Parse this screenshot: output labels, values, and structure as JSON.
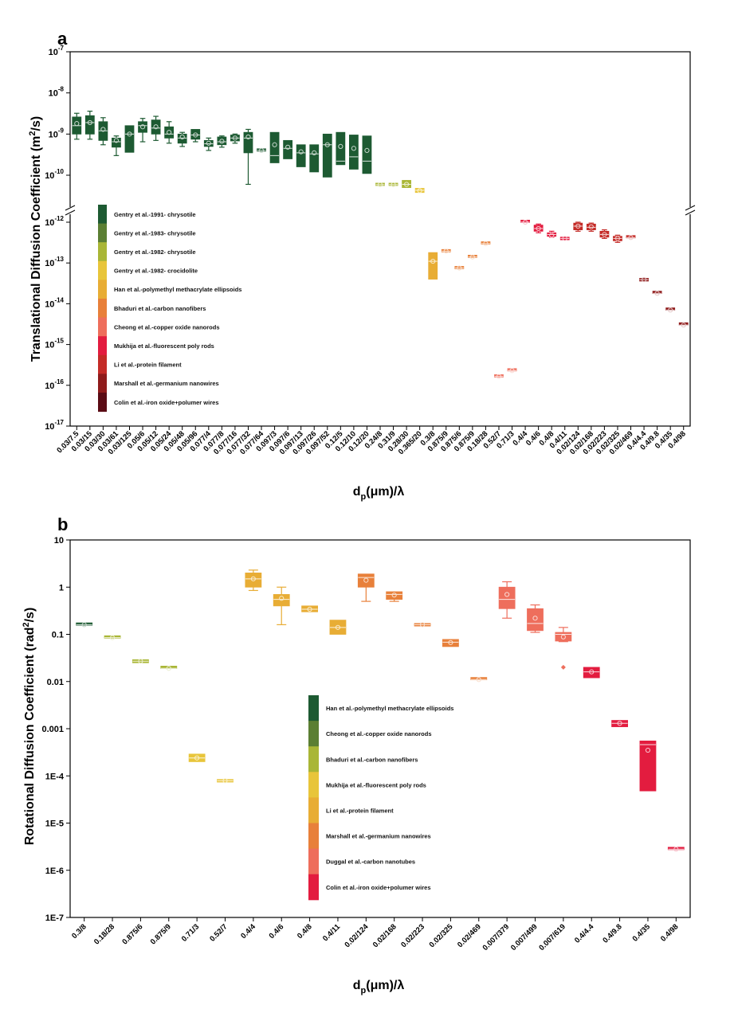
{
  "panels": [
    {
      "letter": "a",
      "ylabel_pre": "Translational Diffusion Coefficient (m",
      "ylabel_sup": "2",
      "ylabel_post": "/s)",
      "xlabel_main": "d",
      "xlabel_sub": "p",
      "xlabel_post": "(μm)/λ",
      "yticks": [
        "10-7",
        "10-8",
        "10-9",
        "10-10",
        "10-12",
        "10-13",
        "10-14",
        "10-15",
        "10-16",
        "10-17"
      ],
      "legend": [
        "Gentry et al.-1991- chrysotile",
        "Gentry et al.-1983- chrysotile",
        "Gentry et al.-1982- chrysotile",
        "Gentry et al.-1982- crocidolite",
        "Han et al.-polymethyl methacrylate ellipsoids",
        "Bhaduri et al.-carbon nanofibers",
        "Cheong et al.-copper oxide nanorods",
        "Mukhija et al.-fluorescent poly rods",
        "Li et al.-protein filament",
        "Marshall et al.-germanium nanowires",
        "Colin et al.-iron oxide+polumer wires"
      ]
    },
    {
      "letter": "b",
      "ylabel_pre": "Rotational Diffusion Coefficient (rad",
      "ylabel_sup": "2",
      "ylabel_post": "/s)",
      "xlabel_main": "d",
      "xlabel_sub": "p",
      "xlabel_post": "(μm)/λ",
      "yticks": [
        "10",
        "1",
        "0.1",
        "0.01",
        "0.001",
        "1E-4",
        "1E-5",
        "1E-6",
        "1E-7"
      ],
      "legend": [
        "Han et al.-polymethyl methacrylate ellipsoids",
        "Cheong et al.-copper oxide nanorods",
        "Bhaduri et al.-carbon nanofibers",
        "Mukhija et al.-fluorescent poly rods",
        "Li et al.-protein filament",
        "Marshall et al.-germanium nanowires",
        "Duggal et al.-carbon nanotubes",
        "Colin et al.-iron oxide+polumer wires"
      ]
    }
  ],
  "colors": {
    "legend_a": [
      "#1d5a32",
      "#5b7f33",
      "#a9b636",
      "#e8c53a",
      "#e8ad35",
      "#e8803a",
      "#ee6e5c",
      "#e31c3f",
      "#c42b27",
      "#8f1b1b",
      "#5a0b14"
    ],
    "legend_b": [
      "#1d5a32",
      "#5b7f33",
      "#a9b636",
      "#e8c53a",
      "#e8ad35",
      "#e8803a",
      "#ee6e5c",
      "#e31c3f"
    ]
  },
  "chart_data": [
    {
      "type": "box",
      "panel": "a",
      "y_scale": "log",
      "y_break": [
        1e-10,
        1e-12
      ],
      "ylim": [
        1e-17,
        1e-07
      ],
      "categories": [
        "0.03/7.5",
        "0.03/15",
        "0.03/30",
        "0.03/61",
        "0.03/125",
        "0.05/6",
        "0.05/12",
        "0.05/24",
        "0.05/48",
        "0.05/96",
        "0.077/4",
        "0.077/8",
        "0.077/16",
        "0.077/32",
        "0.077/64",
        "0.097/3",
        "0.097/6",
        "0.097/13",
        "0.097/26",
        "0.097/52",
        "0.12/5",
        "0.12/10",
        "0.12/20",
        "0.24/8",
        "0.31/9",
        "0.28/30",
        "0.365/20",
        "0.3/8",
        "0.875/9",
        "0.875/6",
        "0.875/9",
        "0.18/28",
        "0.52/7",
        "0.71/3",
        "0.4/4",
        "0.4/6",
        "0.4/8",
        "0.4/11",
        "0.02/124",
        "0.02/168",
        "0.02/223",
        "0.02/325",
        "0.02/469",
        "0.4/4.4",
        "0.4/9.8",
        "0.4/35",
        "0.4/98"
      ],
      "series": [
        {
          "color_index": 0,
          "boxes": [
            {
              "lo": 7.5e-10,
              "q1": 1e-09,
              "med": 1.6e-09,
              "q3": 2.6e-09,
              "hi": 3.2e-09,
              "mean": 1.8e-09
            },
            {
              "lo": 7.5e-10,
              "q1": 1e-09,
              "med": 1.9e-09,
              "q3": 2.8e-09,
              "hi": 3.6e-09,
              "mean": 1.9e-09
            },
            {
              "lo": 5.5e-10,
              "q1": 7e-10,
              "med": 1.2e-09,
              "q3": 2e-09,
              "hi": 2.5e-09,
              "mean": 1.3e-09
            },
            {
              "lo": 3e-10,
              "q1": 4.8e-10,
              "med": 6.5e-10,
              "q3": 8e-10,
              "hi": 9e-10,
              "mean": 7e-10
            },
            {
              "lo": 3.6e-10,
              "q1": 3.6e-10,
              "med": 1e-09,
              "q3": 1.6e-09,
              "hi": 1.6e-09,
              "mean": 1e-09
            },
            {
              "lo": 6.5e-10,
              "q1": 1.1e-09,
              "med": 1.6e-09,
              "q3": 2e-09,
              "hi": 2.4e-09,
              "mean": 1.5e-09
            },
            {
              "lo": 7e-10,
              "q1": 1e-09,
              "med": 1.4e-09,
              "q3": 2.2e-09,
              "hi": 2.7e-09,
              "mean": 1.5e-09
            },
            {
              "lo": 6e-10,
              "q1": 8e-10,
              "med": 1e-09,
              "q3": 1.5e-09,
              "hi": 2e-09,
              "mean": 1.1e-09
            },
            {
              "lo": 5e-10,
              "q1": 6e-10,
              "med": 8e-10,
              "q3": 1e-09,
              "hi": 1.1e-09,
              "mean": 8.5e-10
            },
            {
              "lo": 6.5e-10,
              "q1": 7.5e-10,
              "med": 9.5e-10,
              "q3": 1.3e-09,
              "hi": 1.3e-09,
              "mean": 9.5e-10
            },
            {
              "lo": 4e-10,
              "q1": 5e-10,
              "med": 5.8e-10,
              "q3": 7e-10,
              "hi": 8e-10,
              "mean": 6e-10
            },
            {
              "lo": 4.8e-10,
              "q1": 5.5e-10,
              "med": 6.5e-10,
              "q3": 8.5e-10,
              "hi": 9e-10,
              "mean": 6.7e-10
            },
            {
              "lo": 6e-10,
              "q1": 6.8e-10,
              "med": 8e-10,
              "q3": 9.5e-10,
              "hi": 1e-09,
              "mean": 8e-10
            },
            {
              "lo": 6e-11,
              "q1": 3.5e-10,
              "med": 8e-10,
              "q3": 1.1e-09,
              "hi": 1.3e-09,
              "mean": 8.5e-10
            },
            {
              "lo": 3.9e-10,
              "q1": 3.9e-10,
              "med": 4e-10,
              "q3": 4.1e-10,
              "hi": 4.1e-10,
              "mean": 4e-10
            },
            {
              "lo": 2e-10,
              "q1": 2e-10,
              "med": 3e-10,
              "q3": 1.1e-09,
              "hi": 1.1e-09,
              "mean": 5.5e-10
            },
            {
              "lo": 2.5e-10,
              "q1": 2.5e-10,
              "med": 4.5e-10,
              "q3": 7e-10,
              "hi": 7e-10,
              "mean": 4.8e-10
            },
            {
              "lo": 1.6e-10,
              "q1": 1.6e-10,
              "med": 3.5e-10,
              "q3": 5.5e-10,
              "hi": 5.5e-10,
              "mean": 3.7e-10
            },
            {
              "lo": 1.2e-10,
              "q1": 1.2e-10,
              "med": 3.3e-10,
              "q3": 5.5e-10,
              "hi": 5.5e-10,
              "mean": 3.5e-10
            },
            {
              "lo": 9e-11,
              "q1": 9e-11,
              "med": 5.5e-10,
              "q3": 1e-09,
              "hi": 1e-09,
              "mean": 5.5e-10
            },
            {
              "lo": 1.8e-10,
              "q1": 1.8e-10,
              "med": 2.2e-10,
              "q3": 1.1e-09,
              "hi": 1.1e-09,
              "mean": 5e-10
            },
            {
              "lo": 1.4e-10,
              "q1": 1.4e-10,
              "med": 2.8e-10,
              "q3": 9.5e-10,
              "hi": 9.5e-10,
              "mean": 4.5e-10
            },
            {
              "lo": 1.1e-10,
              "q1": 1.1e-10,
              "med": 2.2e-10,
              "q3": 9e-10,
              "hi": 9e-10,
              "mean": 4e-10
            }
          ]
        },
        {
          "color_index": 2,
          "boxes": [
            {
              "lo": 5.8e-11,
              "q1": 5.8e-11,
              "med": 5.9e-11,
              "q3": 6e-11,
              "hi": 6e-11,
              "mean": 5.9e-11
            },
            {
              "lo": 5.8e-11,
              "q1": 5.8e-11,
              "med": 5.9e-11,
              "q3": 6e-11,
              "hi": 6e-11,
              "mean": 5.9e-11
            },
            {
              "lo": 5e-11,
              "q1": 5e-11,
              "med": 6e-11,
              "q3": 7.5e-11,
              "hi": 7.5e-11,
              "mean": 6e-11
            }
          ]
        },
        {
          "color_index": 3,
          "boxes": [
            {
              "lo": 3.8e-11,
              "q1": 3.8e-11,
              "med": 4.3e-11,
              "q3": 4.8e-11,
              "hi": 4.8e-11,
              "mean": 4.2e-11
            }
          ]
        },
        {
          "color_index": 4,
          "boxes": [
            {
              "lo": 4e-14,
              "q1": 4e-14,
              "med": 1.1e-13,
              "q3": 1.8e-13,
              "hi": 1.8e-13,
              "mean": 1.1e-13
            }
          ]
        },
        {
          "color_index": 5,
          "boxes": [
            {
              "lo": 1.9e-13,
              "q1": 1.9e-13,
              "med": 1.95e-13,
              "q3": 2e-13,
              "hi": 2e-13,
              "mean": 1.95e-13
            },
            {
              "lo": 7.3e-14,
              "q1": 7.3e-14,
              "med": 7.5e-14,
              "q3": 7.7e-14,
              "hi": 7.7e-14,
              "mean": 7.5e-14
            },
            {
              "lo": 1.35e-13,
              "q1": 1.35e-13,
              "med": 1.4e-13,
              "q3": 1.45e-13,
              "hi": 1.45e-13,
              "mean": 1.4e-13
            },
            {
              "lo": 2.9e-13,
              "q1": 2.9e-13,
              "med": 3e-13,
              "q3": 3.1e-13,
              "hi": 3.1e-13,
              "mean": 3e-13
            }
          ]
        },
        {
          "color_index": 6,
          "boxes": [
            {
              "lo": 1.6e-16,
              "q1": 1.6e-16,
              "med": 1.65e-16,
              "q3": 1.7e-16,
              "hi": 1.7e-16,
              "mean": 1.65e-16
            },
            {
              "lo": 2.2e-16,
              "q1": 2.2e-16,
              "med": 2.3e-16,
              "q3": 2.4e-16,
              "hi": 2.4e-16,
              "mean": 2.3e-16
            }
          ]
        },
        {
          "color_index": 7,
          "boxes": [
            {
              "lo": 9.5e-13,
              "q1": 9.5e-13,
              "med": 1e-12,
              "q3": 1.05e-12,
              "hi": 1.05e-12,
              "mean": 1e-12
            },
            {
              "lo": 5.5e-13,
              "q1": 6e-13,
              "med": 7e-13,
              "q3": 8.5e-13,
              "hi": 9e-13,
              "mean": 7e-13
            },
            {
              "lo": 4.3e-13,
              "q1": 4.5e-13,
              "med": 5e-13,
              "q3": 5.5e-13,
              "hi": 6e-13,
              "mean": 4.8e-13
            },
            {
              "lo": 3.7e-13,
              "q1": 3.7e-13,
              "med": 4e-13,
              "q3": 4.3e-13,
              "hi": 4.3e-13,
              "mean": 4e-13
            }
          ]
        },
        {
          "color_index": 8,
          "boxes": [
            {
              "lo": 6e-13,
              "q1": 6.5e-13,
              "med": 8e-13,
              "q3": 9.5e-13,
              "hi": 1e-12,
              "mean": 8e-13
            },
            {
              "lo": 6e-13,
              "q1": 6.5e-13,
              "med": 7.5e-13,
              "q3": 9e-13,
              "hi": 9.5e-13,
              "mean": 7.7e-13
            },
            {
              "lo": 4e-13,
              "q1": 4.3e-13,
              "med": 5e-13,
              "q3": 6e-13,
              "hi": 6.5e-13,
              "mean": 5e-13
            },
            {
              "lo": 3.2e-13,
              "q1": 3.5e-13,
              "med": 4e-13,
              "q3": 4.5e-13,
              "hi": 4.8e-13,
              "mean": 4e-13
            },
            {
              "lo": 4e-13,
              "q1": 4e-13,
              "med": 4.2e-13,
              "q3": 4.4e-13,
              "hi": 4.4e-13,
              "mean": 4.2e-13
            }
          ]
        },
        {
          "color_index": 9,
          "boxes": [
            {
              "lo": 3.6e-14,
              "q1": 3.6e-14,
              "med": 3.9e-14,
              "q3": 4.2e-14,
              "hi": 4.2e-14,
              "mean": 3.9e-14
            },
            {
              "lo": 1.7e-14,
              "q1": 1.7e-14,
              "med": 1.8e-14,
              "q3": 1.9e-14,
              "hi": 1.9e-14,
              "mean": 1.8e-14
            },
            {
              "lo": 6.6e-15,
              "q1": 6.6e-15,
              "med": 7e-15,
              "q3": 7.4e-15,
              "hi": 7.4e-15,
              "mean": 7e-15
            },
            {
              "lo": 2.8e-15,
              "q1": 2.8e-15,
              "med": 3e-15,
              "q3": 3.2e-15,
              "hi": 3.2e-15,
              "mean": 3e-15
            }
          ]
        }
      ]
    },
    {
      "type": "box",
      "panel": "b",
      "y_scale": "log",
      "ylim": [
        1e-07,
        10
      ],
      "categories": [
        "0.3/8",
        "0.18/28",
        "0.875/6",
        "0.875/9",
        "0.71/3",
        "0.52/7",
        "0.4/4",
        "0.4/6",
        "0.4/8",
        "0.4/11",
        "0.02/124",
        "0.02/168",
        "0.02/223",
        "0.02/325",
        "0.02/469",
        "0.007/379",
        "0.007/499",
        "0.007/619",
        "0.4/4.4",
        "0.4/9.8",
        "0.4/35",
        "0.4/98"
      ],
      "series": [
        {
          "color_index": 0,
          "boxes": [
            {
              "lo": 0.155,
              "q1": 0.155,
              "med": 0.16,
              "q3": 0.165,
              "hi": 0.165,
              "mean": 0.16
            }
          ]
        },
        {
          "color_index": 2,
          "boxes": [
            {
              "lo": 0.082,
              "q1": 0.082,
              "med": 0.085,
              "q3": 0.088,
              "hi": 0.088,
              "mean": 0.085
            },
            {
              "lo": 0.025,
              "q1": 0.025,
              "med": 0.027,
              "q3": 0.029,
              "hi": 0.029,
              "mean": 0.027
            },
            {
              "lo": 0.018,
              "q1": 0.018,
              "med": 0.019,
              "q3": 0.02,
              "hi": 0.02,
              "mean": 0.019
            }
          ]
        },
        {
          "color_index": 3,
          "boxes": [
            {
              "lo": 0.0002,
              "q1": 0.0002,
              "med": 0.00024,
              "q3": 0.00029,
              "hi": 0.00029,
              "mean": 0.00024
            },
            {
              "lo": 7.4e-05,
              "q1": 7.4e-05,
              "med": 7.9e-05,
              "q3": 8.4e-05,
              "hi": 8.4e-05,
              "mean": 7.9e-05
            }
          ]
        },
        {
          "color_index": 4,
          "boxes": [
            {
              "lo": 0.85,
              "q1": 1.0,
              "med": 1.5,
              "q3": 2.0,
              "hi": 2.3,
              "mean": 1.5
            },
            {
              "lo": 0.16,
              "q1": 0.4,
              "med": 0.55,
              "q3": 0.7,
              "hi": 1.0,
              "mean": 0.58
            },
            {
              "lo": 0.3,
              "q1": 0.3,
              "med": 0.34,
              "q3": 0.4,
              "hi": 0.4,
              "mean": 0.34
            },
            {
              "lo": 0.1,
              "q1": 0.1,
              "med": 0.14,
              "q3": 0.2,
              "hi": 0.2,
              "mean": 0.14
            }
          ]
        },
        {
          "color_index": 5,
          "boxes": [
            {
              "lo": 0.5,
              "q1": 1.0,
              "med": 1.6,
              "q3": 1.9,
              "hi": 1.9,
              "mean": 1.4
            },
            {
              "lo": 0.5,
              "q1": 0.55,
              "med": 0.7,
              "q3": 0.8,
              "hi": 0.8,
              "mean": 0.68
            },
            {
              "lo": 0.15,
              "q1": 0.15,
              "med": 0.16,
              "q3": 0.17,
              "hi": 0.17,
              "mean": 0.16
            },
            {
              "lo": 0.055,
              "q1": 0.055,
              "med": 0.068,
              "q3": 0.078,
              "hi": 0.078,
              "mean": 0.067
            },
            {
              "lo": 0.0105,
              "q1": 0.0105,
              "med": 0.011,
              "q3": 0.0115,
              "hi": 0.0115,
              "mean": 0.011
            }
          ]
        },
        {
          "color_index": 6,
          "boxes": [
            {
              "lo": 0.22,
              "q1": 0.35,
              "med": 0.55,
              "q3": 1.0,
              "hi": 1.3,
              "mean": 0.7
            },
            {
              "lo": 0.11,
              "q1": 0.12,
              "med": 0.17,
              "q3": 0.35,
              "hi": 0.42,
              "mean": 0.22
            },
            {
              "lo": 0.07,
              "q1": 0.072,
              "med": 0.1,
              "q3": 0.11,
              "hi": 0.14,
              "mean": 0.088,
              "outlier": 0.02
            }
          ]
        },
        {
          "color_index": 7,
          "boxes": [
            {
              "lo": 0.012,
              "q1": 0.012,
              "med": 0.016,
              "q3": 0.02,
              "hi": 0.02,
              "mean": 0.016
            },
            {
              "lo": 0.0011,
              "q1": 0.0011,
              "med": 0.0013,
              "q3": 0.0015,
              "hi": 0.0015,
              "mean": 0.0013
            },
            {
              "lo": 4.8e-05,
              "q1": 4.8e-05,
              "med": 0.00046,
              "q3": 0.00055,
              "hi": 0.00055,
              "mean": 0.00035
            },
            {
              "lo": 2.7e-06,
              "q1": 2.7e-06,
              "med": 2.8e-06,
              "q3": 2.9e-06,
              "hi": 2.9e-06,
              "mean": 2.8e-06
            }
          ]
        }
      ]
    }
  ]
}
